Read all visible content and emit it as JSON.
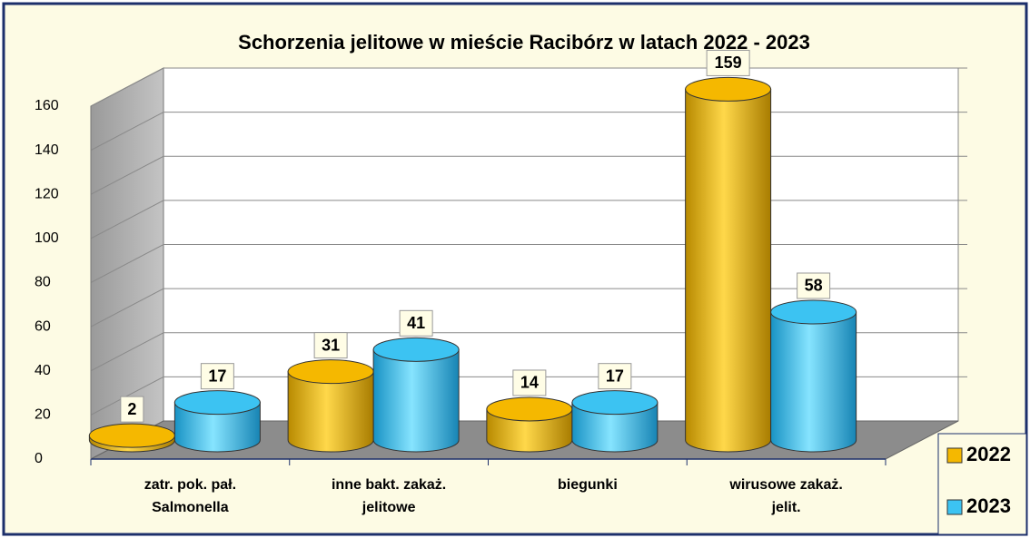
{
  "chart_data": {
    "type": "bar3d",
    "title": "Schorzenia jelitowe w mieście Racibórz w latach 2022 - 2023",
    "categories": [
      [
        "zatr. pok. pał.",
        "Salmonella"
      ],
      [
        "inne bakt. zakaż.",
        "jelitowe"
      ],
      [
        "biegunki"
      ],
      [
        "wirusowe zakaż.",
        "jelit."
      ]
    ],
    "series": [
      {
        "name": "2022",
        "color": "#f5b800",
        "values": [
          2,
          31,
          14,
          159
        ]
      },
      {
        "name": "2023",
        "color": "#3cc3f2",
        "values": [
          17,
          41,
          17,
          58
        ]
      }
    ],
    "ylim": [
      0,
      160
    ],
    "yticks": [
      0,
      20,
      40,
      60,
      80,
      100,
      120,
      140,
      160
    ],
    "grid": true,
    "legend": "bottom-right"
  }
}
